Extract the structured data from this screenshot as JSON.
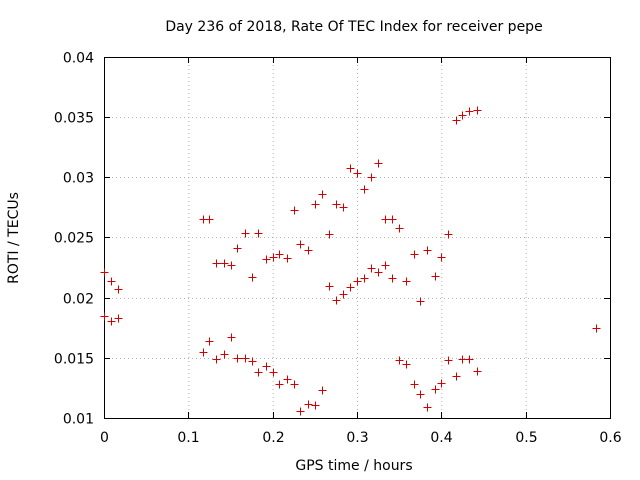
{
  "chart_data": {
    "type": "scatter",
    "title": "Day 236 of 2018, Rate Of TEC Index for receiver pepe",
    "xlabel": "GPS time / hours",
    "ylabel": "ROTI / TECUs",
    "xlim": [
      0,
      0.6
    ],
    "ylim": [
      0.01,
      0.04
    ],
    "xticks": [
      0,
      0.1,
      0.2,
      0.3,
      0.4,
      0.5,
      0.6
    ],
    "xtick_labels": [
      "0",
      "0.1",
      "0.2",
      "0.3",
      "0.4",
      "0.5",
      "0.6"
    ],
    "yticks": [
      0.01,
      0.015,
      0.02,
      0.025,
      0.03,
      0.035,
      0.04
    ],
    "ytick_labels": [
      "0.01",
      "0.015",
      "0.02",
      "0.025",
      "0.03",
      "0.035",
      "0.04"
    ],
    "grid": true,
    "marker": "+",
    "color": "#d40000",
    "series": [
      {
        "name": "ROTI",
        "points": [
          [
            0.0,
            0.0221
          ],
          [
            0.0,
            0.0185
          ],
          [
            0.008,
            0.0214
          ],
          [
            0.008,
            0.0181
          ],
          [
            0.017,
            0.0207
          ],
          [
            0.017,
            0.0183
          ],
          [
            0.117,
            0.0265
          ],
          [
            0.117,
            0.0155
          ],
          [
            0.125,
            0.0265
          ],
          [
            0.125,
            0.0164
          ],
          [
            0.133,
            0.0229
          ],
          [
            0.133,
            0.0149
          ],
          [
            0.142,
            0.0229
          ],
          [
            0.142,
            0.0153
          ],
          [
            0.15,
            0.0227
          ],
          [
            0.15,
            0.0167
          ],
          [
            0.158,
            0.0241
          ],
          [
            0.158,
            0.015
          ],
          [
            0.167,
            0.0254
          ],
          [
            0.167,
            0.015
          ],
          [
            0.175,
            0.0217
          ],
          [
            0.175,
            0.0147
          ],
          [
            0.183,
            0.0254
          ],
          [
            0.183,
            0.0138
          ],
          [
            0.192,
            0.0232
          ],
          [
            0.192,
            0.0143
          ],
          [
            0.2,
            0.0234
          ],
          [
            0.2,
            0.0138
          ],
          [
            0.208,
            0.0236
          ],
          [
            0.208,
            0.0128
          ],
          [
            0.217,
            0.0233
          ],
          [
            0.217,
            0.0132
          ],
          [
            0.225,
            0.0273
          ],
          [
            0.225,
            0.0128
          ],
          [
            0.233,
            0.0245
          ],
          [
            0.233,
            0.0106
          ],
          [
            0.242,
            0.024
          ],
          [
            0.242,
            0.0112
          ],
          [
            0.25,
            0.0278
          ],
          [
            0.25,
            0.0111
          ],
          [
            0.258,
            0.0286
          ],
          [
            0.258,
            0.0123
          ],
          [
            0.267,
            0.0253
          ],
          [
            0.267,
            0.021
          ],
          [
            0.275,
            0.0278
          ],
          [
            0.275,
            0.0198
          ],
          [
            0.283,
            0.0275
          ],
          [
            0.283,
            0.0203
          ],
          [
            0.292,
            0.0308
          ],
          [
            0.292,
            0.0209
          ],
          [
            0.3,
            0.0304
          ],
          [
            0.3,
            0.0214
          ],
          [
            0.308,
            0.029
          ],
          [
            0.308,
            0.0216
          ],
          [
            0.317,
            0.03
          ],
          [
            0.317,
            0.0225
          ],
          [
            0.325,
            0.0312
          ],
          [
            0.325,
            0.0221
          ],
          [
            0.333,
            0.0265
          ],
          [
            0.333,
            0.0227
          ],
          [
            0.342,
            0.0265
          ],
          [
            0.342,
            0.0216
          ],
          [
            0.35,
            0.0258
          ],
          [
            0.35,
            0.0148
          ],
          [
            0.358,
            0.0214
          ],
          [
            0.358,
            0.0145
          ],
          [
            0.367,
            0.0236
          ],
          [
            0.367,
            0.0128
          ],
          [
            0.375,
            0.0197
          ],
          [
            0.375,
            0.012
          ],
          [
            0.383,
            0.024
          ],
          [
            0.383,
            0.0109
          ],
          [
            0.392,
            0.0218
          ],
          [
            0.392,
            0.0124
          ],
          [
            0.4,
            0.0234
          ],
          [
            0.4,
            0.0129
          ],
          [
            0.408,
            0.0253
          ],
          [
            0.408,
            0.0148
          ],
          [
            0.417,
            0.0348
          ],
          [
            0.417,
            0.0135
          ],
          [
            0.425,
            0.0352
          ],
          [
            0.425,
            0.0149
          ],
          [
            0.433,
            0.0355
          ],
          [
            0.433,
            0.0149
          ],
          [
            0.442,
            0.0356
          ],
          [
            0.442,
            0.0139
          ],
          [
            0.583,
            0.0175
          ]
        ]
      }
    ]
  }
}
